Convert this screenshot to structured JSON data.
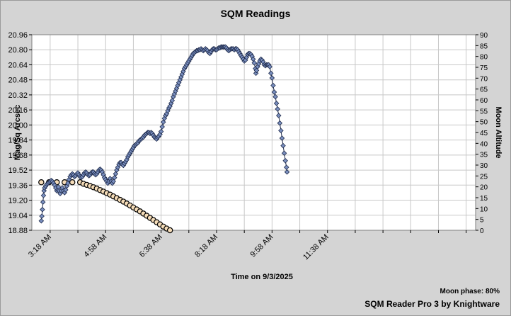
{
  "chart_data": {
    "type": "scatter",
    "title": "SQM Readings",
    "xlabel": "Time on 9/3/2025",
    "ylabel": "Mag/Sq Arcsec",
    "y2label": "Moon Altitude",
    "footer": {
      "moon_phase": "Moon phase: 80%",
      "credit": "SQM Reader Pro 3 by Knightware"
    },
    "x_ticks": [
      "3:18 AM",
      "4:58 AM",
      "6:38 AM",
      "8:18 AM",
      "9:58 AM",
      "11:38 AM"
    ],
    "x_tick_minutes": [
      198,
      298,
      398,
      498,
      598,
      698
    ],
    "xlim_minutes": [
      165,
      965
    ],
    "y_ticks": [
      "20.96",
      "20.80",
      "20.64",
      "20.48",
      "20.32",
      "20.16",
      "20.00",
      "19.84",
      "19.68",
      "19.52",
      "19.36",
      "19.20",
      "19.04",
      "18.88"
    ],
    "ylim": [
      18.88,
      20.96
    ],
    "y2_ticks": [
      "90",
      "85",
      "80",
      "75",
      "70",
      "65",
      "60",
      "55",
      "50",
      "45",
      "40",
      "35",
      "30",
      "25",
      "20",
      "15",
      "10",
      "5",
      "0"
    ],
    "y2lim": [
      0,
      90
    ],
    "grid": true,
    "series": [
      {
        "key": "sqm",
        "axis": "left",
        "marker": "diamond",
        "color": "#7a8fbf",
        "points": [
          [
            182,
            18.98
          ],
          [
            183,
            19.03
          ],
          [
            184,
            19.1
          ],
          [
            185,
            19.18
          ],
          [
            186,
            19.25
          ],
          [
            187,
            19.3
          ],
          [
            188,
            19.33
          ],
          [
            190,
            19.35
          ],
          [
            192,
            19.37
          ],
          [
            194,
            19.38
          ],
          [
            196,
            19.39
          ],
          [
            198,
            19.4
          ],
          [
            200,
            19.41
          ],
          [
            202,
            19.4
          ],
          [
            204,
            19.38
          ],
          [
            206,
            19.36
          ],
          [
            208,
            19.33
          ],
          [
            210,
            19.3
          ],
          [
            212,
            19.31
          ],
          [
            213,
            19.34
          ],
          [
            214,
            19.3
          ],
          [
            216,
            19.27
          ],
          [
            218,
            19.3
          ],
          [
            220,
            19.33
          ],
          [
            222,
            19.3
          ],
          [
            224,
            19.28
          ],
          [
            226,
            19.31
          ],
          [
            228,
            19.35
          ],
          [
            230,
            19.38
          ],
          [
            232,
            19.42
          ],
          [
            234,
            19.45
          ],
          [
            236,
            19.47
          ],
          [
            238,
            19.48
          ],
          [
            240,
            19.47
          ],
          [
            242,
            19.45
          ],
          [
            244,
            19.46
          ],
          [
            246,
            19.48
          ],
          [
            248,
            19.49
          ],
          [
            250,
            19.47
          ],
          [
            252,
            19.45
          ],
          [
            254,
            19.44
          ],
          [
            256,
            19.45
          ],
          [
            258,
            19.47
          ],
          [
            260,
            19.49
          ],
          [
            262,
            19.5
          ],
          [
            264,
            19.49
          ],
          [
            266,
            19.47
          ],
          [
            268,
            19.46
          ],
          [
            270,
            19.47
          ],
          [
            272,
            19.49
          ],
          [
            274,
            19.5
          ],
          [
            276,
            19.5
          ],
          [
            278,
            19.48
          ],
          [
            280,
            19.47
          ],
          [
            282,
            19.48
          ],
          [
            284,
            19.5
          ],
          [
            286,
            19.52
          ],
          [
            288,
            19.53
          ],
          [
            290,
            19.52
          ],
          [
            292,
            19.5
          ],
          [
            294,
            19.47
          ],
          [
            296,
            19.44
          ],
          [
            298,
            19.42
          ],
          [
            300,
            19.4
          ],
          [
            302,
            19.38
          ],
          [
            304,
            19.4
          ],
          [
            306,
            19.43
          ],
          [
            308,
            19.4
          ],
          [
            310,
            19.38
          ],
          [
            312,
            19.4
          ],
          [
            314,
            19.44
          ],
          [
            316,
            19.48
          ],
          [
            318,
            19.52
          ],
          [
            320,
            19.55
          ],
          [
            322,
            19.58
          ],
          [
            324,
            19.6
          ],
          [
            326,
            19.6
          ],
          [
            328,
            19.58
          ],
          [
            330,
            19.57
          ],
          [
            332,
            19.59
          ],
          [
            334,
            19.61
          ],
          [
            336,
            19.63
          ],
          [
            338,
            19.66
          ],
          [
            340,
            19.68
          ],
          [
            342,
            19.7
          ],
          [
            344,
            19.72
          ],
          [
            346,
            19.74
          ],
          [
            348,
            19.76
          ],
          [
            350,
            19.78
          ],
          [
            352,
            19.79
          ],
          [
            354,
            19.8
          ],
          [
            356,
            19.81
          ],
          [
            358,
            19.83
          ],
          [
            360,
            19.84
          ],
          [
            362,
            19.85
          ],
          [
            364,
            19.86
          ],
          [
            366,
            19.87
          ],
          [
            368,
            19.89
          ],
          [
            370,
            19.9
          ],
          [
            372,
            19.91
          ],
          [
            374,
            19.92
          ],
          [
            376,
            19.92
          ],
          [
            378,
            19.91
          ],
          [
            380,
            19.92
          ],
          [
            382,
            19.91
          ],
          [
            384,
            19.89
          ],
          [
            386,
            19.87
          ],
          [
            388,
            19.86
          ],
          [
            390,
            19.85
          ],
          [
            392,
            19.87
          ],
          [
            394,
            19.88
          ],
          [
            396,
            19.9
          ],
          [
            398,
            19.93
          ],
          [
            400,
            19.98
          ],
          [
            402,
            20.03
          ],
          [
            404,
            20.07
          ],
          [
            406,
            20.1
          ],
          [
            408,
            20.12
          ],
          [
            410,
            20.15
          ],
          [
            412,
            20.18
          ],
          [
            414,
            20.2
          ],
          [
            416,
            20.23
          ],
          [
            418,
            20.26
          ],
          [
            420,
            20.3
          ],
          [
            422,
            20.33
          ],
          [
            424,
            20.36
          ],
          [
            426,
            20.39
          ],
          [
            428,
            20.42
          ],
          [
            430,
            20.45
          ],
          [
            432,
            20.48
          ],
          [
            434,
            20.51
          ],
          [
            436,
            20.54
          ],
          [
            438,
            20.57
          ],
          [
            440,
            20.6
          ],
          [
            442,
            20.62
          ],
          [
            444,
            20.64
          ],
          [
            446,
            20.66
          ],
          [
            448,
            20.68
          ],
          [
            450,
            20.7
          ],
          [
            452,
            20.72
          ],
          [
            454,
            20.74
          ],
          [
            456,
            20.76
          ],
          [
            458,
            20.77
          ],
          [
            460,
            20.78
          ],
          [
            462,
            20.79
          ],
          [
            464,
            20.79
          ],
          [
            466,
            20.8
          ],
          [
            468,
            20.8
          ],
          [
            470,
            20.81
          ],
          [
            472,
            20.8
          ],
          [
            474,
            20.79
          ],
          [
            476,
            20.8
          ],
          [
            478,
            20.81
          ],
          [
            480,
            20.8
          ],
          [
            482,
            20.79
          ],
          [
            484,
            20.77
          ],
          [
            486,
            20.76
          ],
          [
            488,
            20.78
          ],
          [
            490,
            20.8
          ],
          [
            492,
            20.81
          ],
          [
            494,
            20.81
          ],
          [
            496,
            20.8
          ],
          [
            498,
            20.8
          ],
          [
            500,
            20.81
          ],
          [
            502,
            20.82
          ],
          [
            504,
            20.82
          ],
          [
            506,
            20.83
          ],
          [
            508,
            20.83
          ],
          [
            510,
            20.83
          ],
          [
            512,
            20.83
          ],
          [
            514,
            20.83
          ],
          [
            516,
            20.82
          ],
          [
            518,
            20.8
          ],
          [
            520,
            20.79
          ],
          [
            522,
            20.8
          ],
          [
            524,
            20.81
          ],
          [
            526,
            20.81
          ],
          [
            528,
            20.81
          ],
          [
            530,
            20.8
          ],
          [
            532,
            20.81
          ],
          [
            534,
            20.81
          ],
          [
            536,
            20.8
          ],
          [
            538,
            20.78
          ],
          [
            540,
            20.76
          ],
          [
            542,
            20.74
          ],
          [
            544,
            20.72
          ],
          [
            546,
            20.7
          ],
          [
            548,
            20.68
          ],
          [
            550,
            20.69
          ],
          [
            552,
            20.72
          ],
          [
            554,
            20.75
          ],
          [
            556,
            20.76
          ],
          [
            558,
            20.76
          ],
          [
            560,
            20.75
          ],
          [
            562,
            20.73
          ],
          [
            564,
            20.7
          ],
          [
            566,
            20.66
          ],
          [
            568,
            20.6
          ],
          [
            569,
            20.55
          ],
          [
            570,
            20.58
          ],
          [
            572,
            20.62
          ],
          [
            574,
            20.65
          ],
          [
            576,
            20.68
          ],
          [
            578,
            20.7
          ],
          [
            580,
            20.69
          ],
          [
            582,
            20.67
          ],
          [
            584,
            20.64
          ],
          [
            586,
            20.63
          ],
          [
            588,
            20.64
          ],
          [
            590,
            20.64
          ],
          [
            592,
            20.64
          ],
          [
            594,
            20.62
          ],
          [
            596,
            20.55
          ],
          [
            598,
            20.5
          ],
          [
            600,
            20.42
          ],
          [
            602,
            20.35
          ],
          [
            604,
            20.3
          ],
          [
            606,
            20.23
          ],
          [
            608,
            20.17
          ],
          [
            610,
            20.1
          ],
          [
            612,
            20.02
          ],
          [
            614,
            19.94
          ],
          [
            616,
            19.86
          ],
          [
            618,
            19.78
          ],
          [
            620,
            19.7
          ],
          [
            622,
            19.62
          ],
          [
            624,
            19.55
          ],
          [
            625,
            19.5
          ]
        ]
      },
      {
        "key": "moon",
        "axis": "right",
        "marker": "circle",
        "color": "#f5dcb8",
        "points": [
          [
            182,
            22.1
          ],
          [
            196,
            22.1
          ],
          [
            210,
            22.1
          ],
          [
            224,
            22.1
          ],
          [
            238,
            22.1
          ],
          [
            252,
            22.1
          ],
          [
            258,
            21.4
          ],
          [
            264,
            20.9
          ],
          [
            270,
            20.4
          ],
          [
            276,
            19.8
          ],
          [
            282,
            19.2
          ],
          [
            288,
            18.5
          ],
          [
            294,
            17.8
          ],
          [
            300,
            17.1
          ],
          [
            306,
            16.4
          ],
          [
            312,
            15.6
          ],
          [
            318,
            14.8
          ],
          [
            324,
            14.0
          ],
          [
            330,
            13.2
          ],
          [
            336,
            12.3
          ],
          [
            342,
            11.4
          ],
          [
            348,
            10.5
          ],
          [
            354,
            9.6
          ],
          [
            360,
            8.7
          ],
          [
            366,
            7.7
          ],
          [
            372,
            6.7
          ],
          [
            378,
            5.7
          ],
          [
            384,
            4.7
          ],
          [
            390,
            3.7
          ],
          [
            396,
            2.7
          ],
          [
            402,
            1.7
          ],
          [
            408,
            0.8
          ],
          [
            414,
            0.0
          ]
        ]
      }
    ]
  }
}
